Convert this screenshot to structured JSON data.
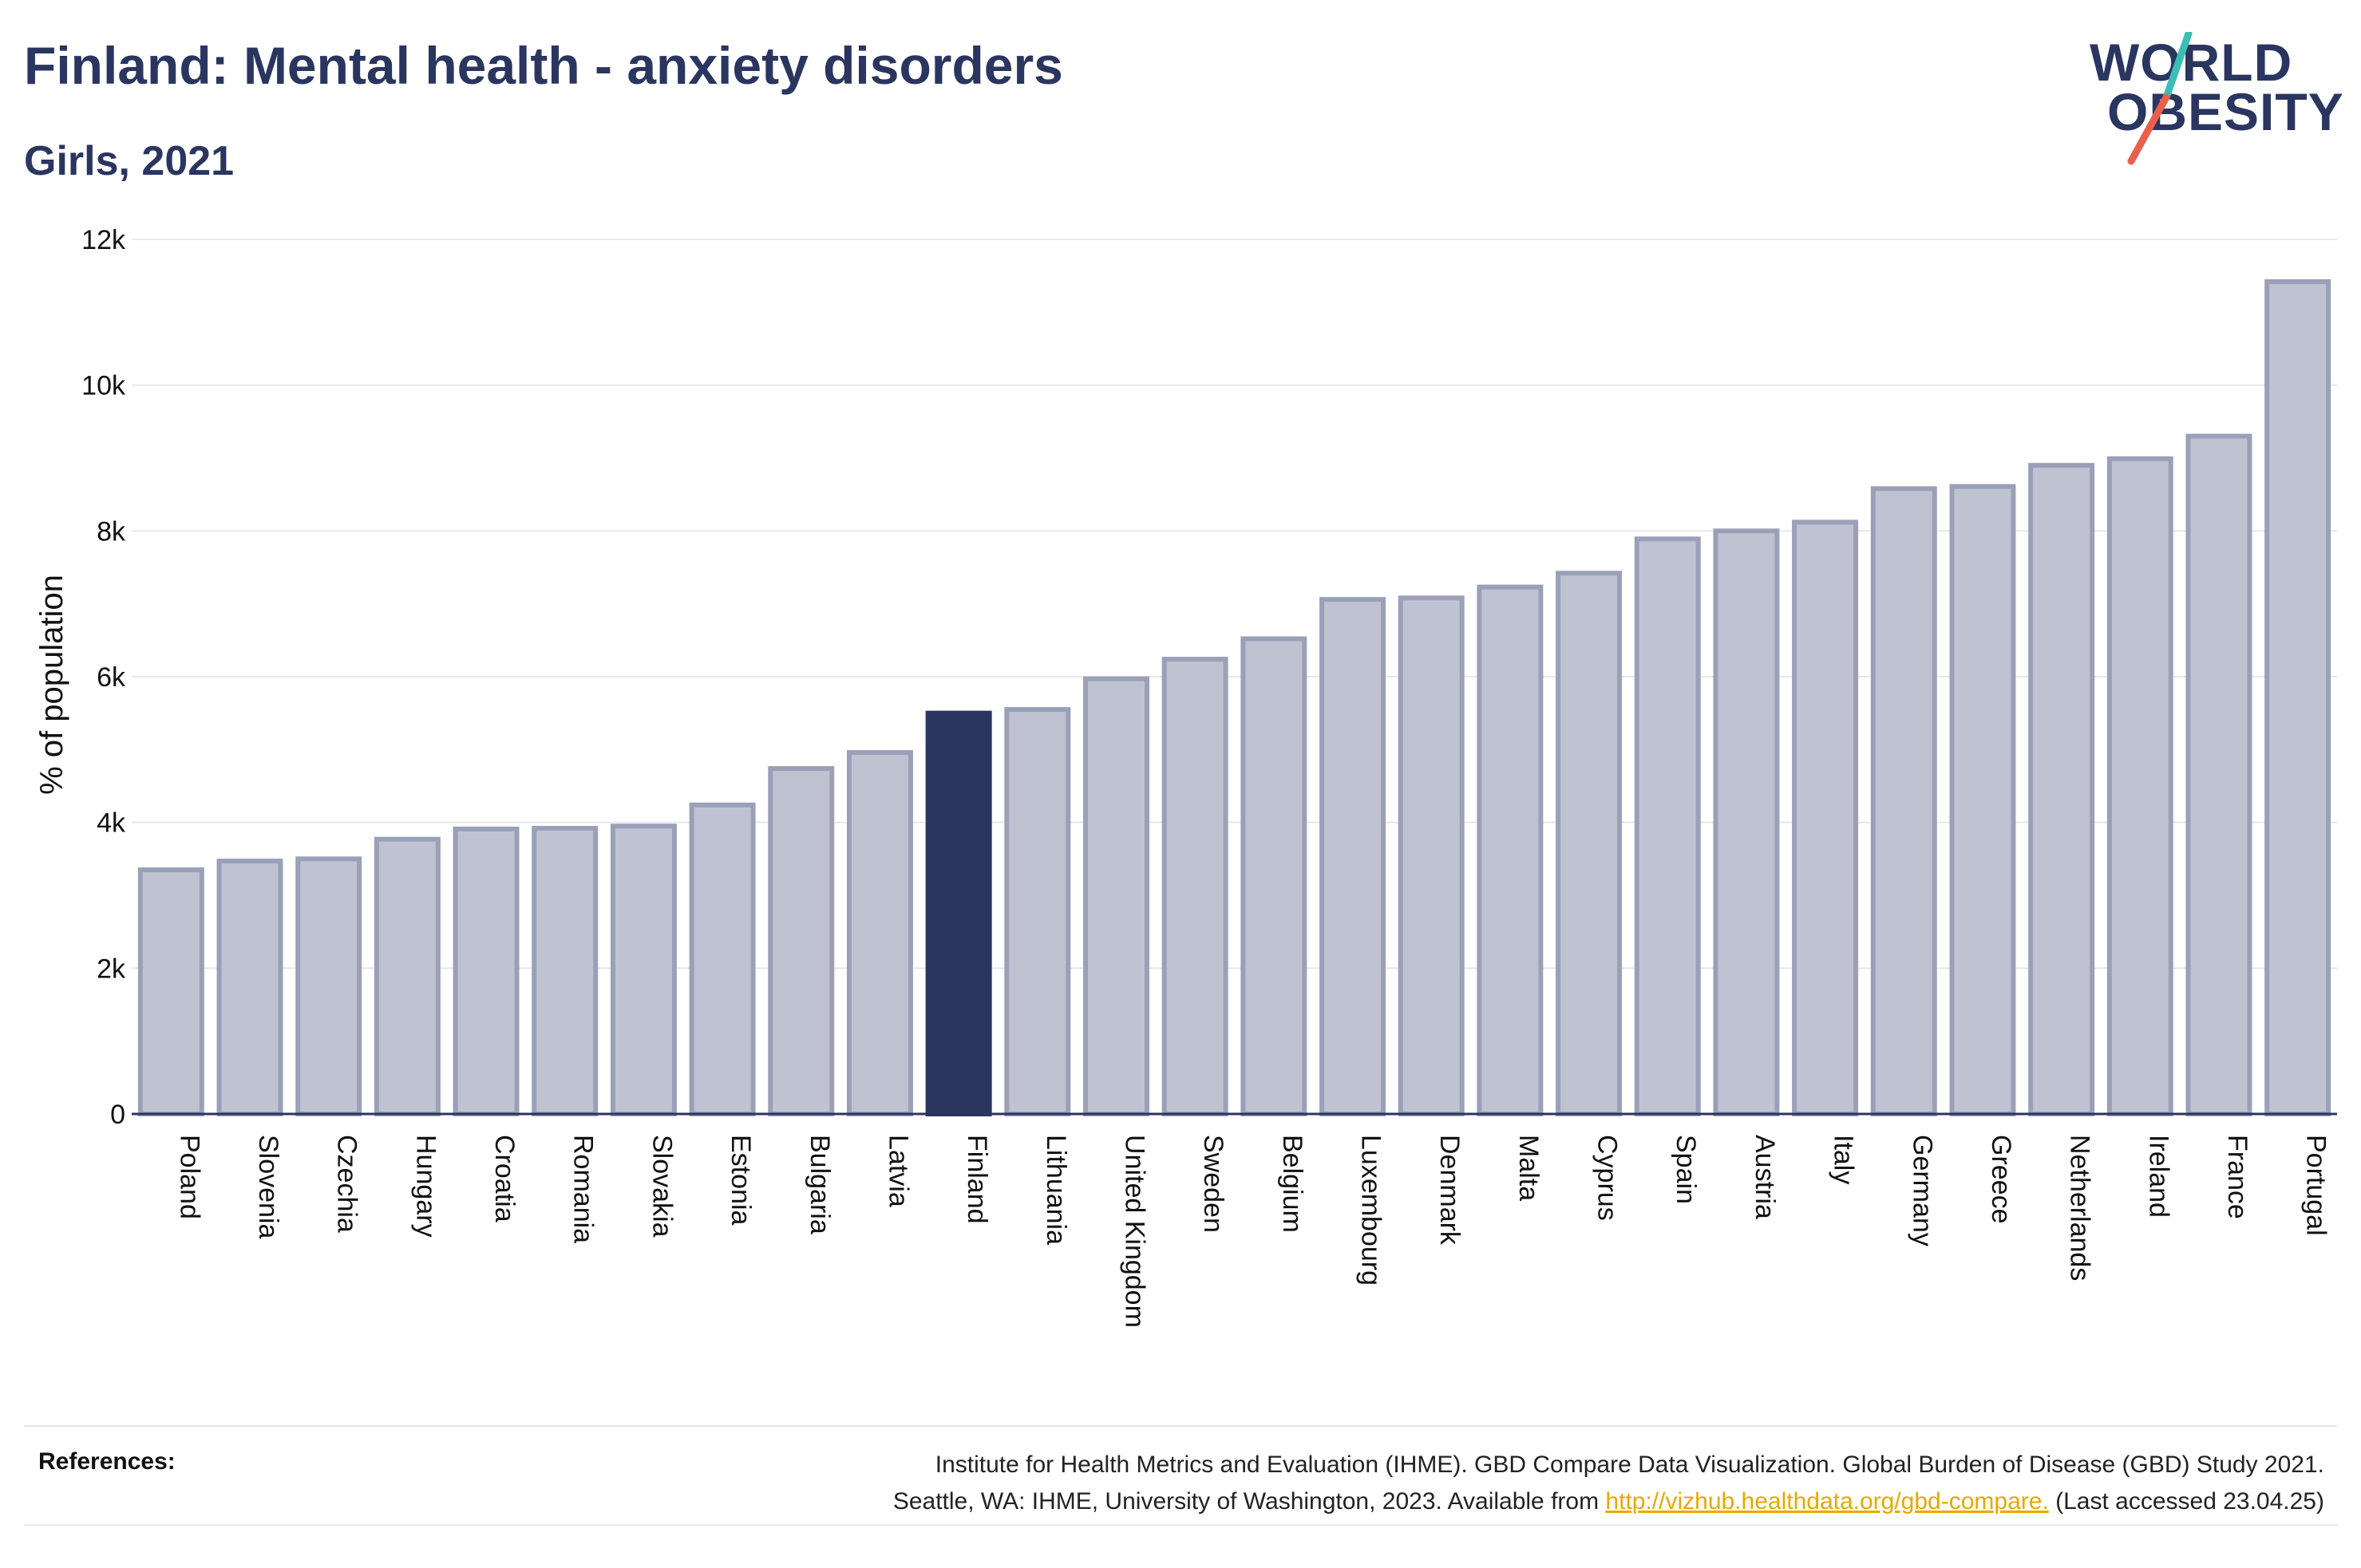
{
  "header": {
    "title": "Finland: Mental health - anxiety disorders",
    "subtitle": "Girls, 2021"
  },
  "logo": {
    "line1": "WORLD",
    "line2": "OBESITY",
    "slash_colors": [
      "#3bbfb4",
      "#e8604c"
    ]
  },
  "colors": {
    "highlight": "#2a3560",
    "bar_fill": "#bfc3d1",
    "bar_stroke": "#9aa0b8",
    "axis": "#2a3560"
  },
  "chart_data": {
    "type": "bar",
    "title": "Finland: Mental health - anxiety disorders",
    "subtitle": "Girls, 2021",
    "ylabel": "% of population",
    "xlabel": "",
    "ylim": [
      0,
      12000
    ],
    "yticks": [
      0,
      2000,
      4000,
      6000,
      8000,
      10000,
      12000
    ],
    "ytick_labels": [
      "0",
      "2k",
      "4k",
      "6k",
      "8k",
      "10k",
      "12k"
    ],
    "grid": true,
    "highlight": "Finland",
    "categories": [
      "Poland",
      "Slovenia",
      "Czechia",
      "Hungary",
      "Croatia",
      "Romania",
      "Slovakia",
      "Estonia",
      "Bulgaria",
      "Latvia",
      "Finland",
      "Lithuania",
      "United Kingdom",
      "Sweden",
      "Belgium",
      "Luxembourg",
      "Denmark",
      "Malta",
      "Cyprus",
      "Spain",
      "Austria",
      "Italy",
      "Germany",
      "Greece",
      "Netherlands",
      "Ireland",
      "France",
      "Portugal"
    ],
    "values": [
      3350,
      3470,
      3500,
      3770,
      3910,
      3920,
      3950,
      4240,
      4740,
      4960,
      5500,
      5550,
      5970,
      6240,
      6520,
      7060,
      7080,
      7230,
      7420,
      7890,
      8000,
      8120,
      8580,
      8610,
      8900,
      8990,
      9300,
      11420
    ]
  },
  "references": {
    "label": "References:",
    "line1": "Institute for Health Metrics and Evaluation (IHME). GBD Compare Data Visualization. Global Burden of Disease (GBD) Study 2021.",
    "line2_prefix": "Seattle, WA: IHME, University of Washington, 2023. Available from ",
    "link": "http://vizhub.healthdata.org/gbd-compare.",
    "line2_suffix": " (Last accessed 23.04.25)"
  }
}
